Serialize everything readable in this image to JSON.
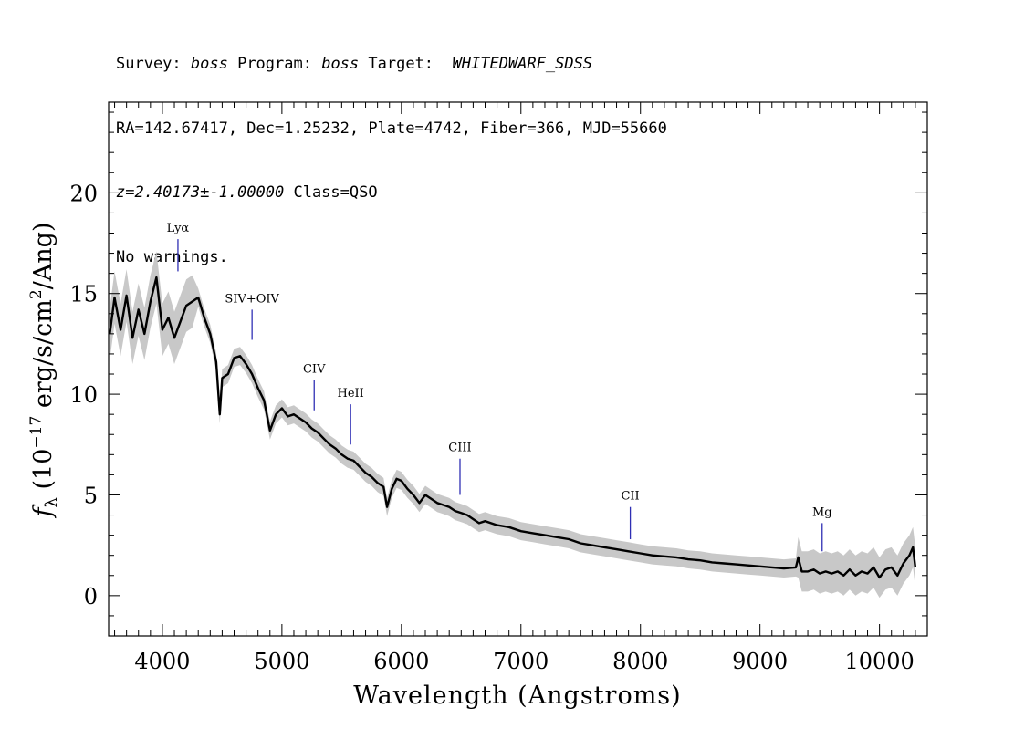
{
  "header": {
    "line1": {
      "survey_label": "Survey: ",
      "survey_value": "boss",
      "program_label": " Program: ",
      "program_value": "boss",
      "target_label": " Target:  ",
      "target_value": "WHITEDWARF_SDSS"
    },
    "line2": "RA=142.67417, Dec=1.25232, Plate=4742, Fiber=366, MJD=55660",
    "line3": {
      "z_text": "z=2.40173±-1.00000",
      "class_text": " Class=QSO"
    },
    "line4": "No warnings."
  },
  "chart_data": {
    "type": "line",
    "xlabel": "Wavelength (Angstroms)",
    "ylabel_prefix": "f",
    "ylabel_sub": "λ",
    "ylabel_open": " (10",
    "ylabel_exp": "−17",
    "ylabel_mid": " erg/s/cm",
    "ylabel_exp2": "2",
    "ylabel_close": "/Ang)",
    "xlim": [
      3550,
      10400
    ],
    "ylim": [
      -2,
      24.5
    ],
    "x_ticks": [
      4000,
      5000,
      6000,
      7000,
      8000,
      9000,
      10000
    ],
    "y_ticks": [
      0,
      5,
      10,
      15,
      20
    ],
    "x_tick_labels": [
      "4000",
      "5000",
      "6000",
      "7000",
      "8000",
      "9000",
      "10000"
    ],
    "y_tick_labels": [
      "0",
      "5",
      "10",
      "15",
      "20"
    ],
    "grid": false,
    "series": [
      {
        "color": "#000000",
        "points": [
          [
            3560,
            13.0
          ],
          [
            3600,
            14.8
          ],
          [
            3650,
            13.2
          ],
          [
            3700,
            14.9
          ],
          [
            3750,
            12.8
          ],
          [
            3800,
            14.2
          ],
          [
            3850,
            13.0
          ],
          [
            3900,
            14.6
          ],
          [
            3950,
            15.8
          ],
          [
            4000,
            13.2
          ],
          [
            4050,
            13.8
          ],
          [
            4100,
            12.8
          ],
          [
            4150,
            13.6
          ],
          [
            4200,
            14.4
          ],
          [
            4250,
            14.6
          ],
          [
            4300,
            14.8
          ],
          [
            4350,
            13.8
          ],
          [
            4400,
            13.0
          ],
          [
            4450,
            11.6
          ],
          [
            4480,
            9.0
          ],
          [
            4500,
            10.8
          ],
          [
            4550,
            11.0
          ],
          [
            4600,
            11.8
          ],
          [
            4650,
            11.9
          ],
          [
            4700,
            11.5
          ],
          [
            4750,
            11.0
          ],
          [
            4800,
            10.3
          ],
          [
            4850,
            9.7
          ],
          [
            4900,
            8.2
          ],
          [
            4950,
            9.0
          ],
          [
            5000,
            9.3
          ],
          [
            5050,
            8.9
          ],
          [
            5100,
            9.0
          ],
          [
            5150,
            8.8
          ],
          [
            5200,
            8.6
          ],
          [
            5250,
            8.3
          ],
          [
            5300,
            8.1
          ],
          [
            5350,
            7.8
          ],
          [
            5400,
            7.5
          ],
          [
            5450,
            7.3
          ],
          [
            5500,
            7.0
          ],
          [
            5550,
            6.8
          ],
          [
            5600,
            6.7
          ],
          [
            5650,
            6.4
          ],
          [
            5700,
            6.1
          ],
          [
            5750,
            5.9
          ],
          [
            5800,
            5.6
          ],
          [
            5850,
            5.4
          ],
          [
            5880,
            4.4
          ],
          [
            5920,
            5.3
          ],
          [
            5960,
            5.8
          ],
          [
            6000,
            5.7
          ],
          [
            6050,
            5.3
          ],
          [
            6100,
            5.0
          ],
          [
            6150,
            4.6
          ],
          [
            6200,
            5.0
          ],
          [
            6250,
            4.8
          ],
          [
            6300,
            4.6
          ],
          [
            6350,
            4.5
          ],
          [
            6400,
            4.4
          ],
          [
            6450,
            4.2
          ],
          [
            6500,
            4.1
          ],
          [
            6550,
            4.0
          ],
          [
            6600,
            3.8
          ],
          [
            6650,
            3.6
          ],
          [
            6700,
            3.7
          ],
          [
            6800,
            3.5
          ],
          [
            6900,
            3.4
          ],
          [
            7000,
            3.2
          ],
          [
            7100,
            3.1
          ],
          [
            7200,
            3.0
          ],
          [
            7300,
            2.9
          ],
          [
            7400,
            2.8
          ],
          [
            7500,
            2.6
          ],
          [
            7600,
            2.5
          ],
          [
            7700,
            2.4
          ],
          [
            7800,
            2.3
          ],
          [
            7900,
            2.2
          ],
          [
            8000,
            2.1
          ],
          [
            8100,
            2.0
          ],
          [
            8200,
            1.95
          ],
          [
            8300,
            1.9
          ],
          [
            8400,
            1.8
          ],
          [
            8500,
            1.75
          ],
          [
            8600,
            1.65
          ],
          [
            8700,
            1.6
          ],
          [
            8800,
            1.55
          ],
          [
            8900,
            1.5
          ],
          [
            9000,
            1.45
          ],
          [
            9100,
            1.4
          ],
          [
            9200,
            1.35
          ],
          [
            9300,
            1.4
          ],
          [
            9320,
            1.9
          ],
          [
            9350,
            1.2
          ],
          [
            9400,
            1.2
          ],
          [
            9450,
            1.3
          ],
          [
            9500,
            1.1
          ],
          [
            9550,
            1.2
          ],
          [
            9600,
            1.1
          ],
          [
            9650,
            1.2
          ],
          [
            9700,
            1.0
          ],
          [
            9750,
            1.3
          ],
          [
            9800,
            1.0
          ],
          [
            9850,
            1.2
          ],
          [
            9900,
            1.1
          ],
          [
            9950,
            1.4
          ],
          [
            10000,
            0.9
          ],
          [
            10050,
            1.3
          ],
          [
            10100,
            1.4
          ],
          [
            10150,
            1.0
          ],
          [
            10200,
            1.6
          ],
          [
            10250,
            2.0
          ],
          [
            10280,
            2.4
          ],
          [
            10300,
            1.4
          ]
        ]
      }
    ],
    "annotations": [
      {
        "label": "Lyα",
        "x": 4130
      },
      {
        "label": "SIV+OIV",
        "x": 4750
      },
      {
        "label": "CIV",
        "x": 5270
      },
      {
        "label": "HeII",
        "x": 5575
      },
      {
        "label": "CIII",
        "x": 6490
      },
      {
        "label": "CII",
        "x": 7915
      },
      {
        "label": "Mg",
        "x": 9520
      }
    ],
    "annotation_tops": [
      17.7,
      14.2,
      10.7,
      9.5,
      6.8,
      4.4,
      3.6
    ],
    "annotation_bottoms": [
      16.1,
      12.7,
      9.2,
      7.5,
      5.0,
      2.8,
      2.2
    ],
    "colors": {
      "flux": "#000000",
      "error_band": "#c8c8c8",
      "annotation_line": "#2f2fb4",
      "axis": "#000000"
    }
  }
}
